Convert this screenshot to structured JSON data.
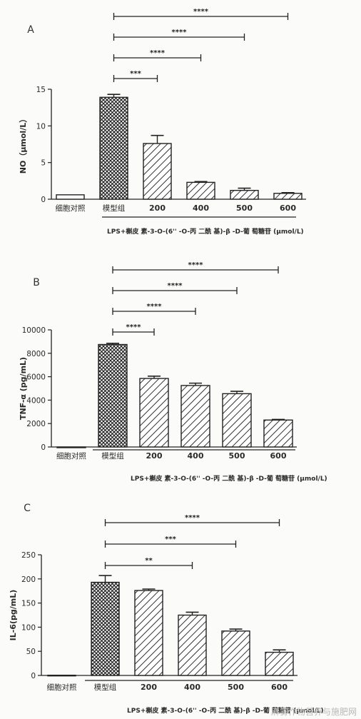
{
  "chart_data": [
    {
      "type": "bar",
      "panel_label": "A",
      "ylabel": "NO（μmol/L）",
      "ylim": [
        0,
        15
      ],
      "yticks": [
        0,
        5,
        10,
        15
      ],
      "categories": [
        "细胞对照",
        "模型组",
        "200",
        "400",
        "500",
        "600"
      ],
      "values": [
        0.6,
        13.9,
        7.6,
        2.3,
        1.2,
        0.8
      ],
      "errors": [
        0,
        0.4,
        1.1,
        0.1,
        0.3,
        0.1
      ],
      "fills": [
        "none",
        "crosshatch",
        "hatch",
        "hatch",
        "hatch",
        "hatch"
      ],
      "bracket_caption": "LPS+槲皮 素-3-O-(6'' -O-丙 二酰 基)-β -D-葡 萄糖苷 (μmol/L)",
      "significance": [
        {
          "from": "模型组",
          "to": "200",
          "label": "***"
        },
        {
          "from": "模型组",
          "to": "400",
          "label": "****"
        },
        {
          "from": "模型组",
          "to": "500",
          "label": "****"
        },
        {
          "from": "模型组",
          "to": "600",
          "label": "****"
        }
      ]
    },
    {
      "type": "bar",
      "panel_label": "B",
      "ylabel": "TNF-α (pg/mL)",
      "ylim": [
        0,
        10000
      ],
      "yticks": [
        0,
        2000,
        4000,
        6000,
        8000,
        10000
      ],
      "categories": [
        "细胞对照",
        "模型组",
        "200",
        "400",
        "500",
        "600"
      ],
      "values": [
        0,
        8750,
        5850,
        5250,
        4550,
        2300
      ],
      "errors": [
        0,
        100,
        200,
        200,
        200,
        50
      ],
      "fills": [
        "none",
        "crosshatch",
        "hatch",
        "hatch",
        "hatch",
        "hatch"
      ],
      "bracket_caption": "LPS+槲皮 素-3-O-(6'' -O-丙 二酰 基)-β -D-葡 萄糖苷 (μmol/L)",
      "significance": [
        {
          "from": "模型组",
          "to": "200",
          "label": "****"
        },
        {
          "from": "模型组",
          "to": "400",
          "label": "****"
        },
        {
          "from": "模型组",
          "to": "500",
          "label": "****"
        },
        {
          "from": "模型组",
          "to": "600",
          "label": "****"
        }
      ]
    },
    {
      "type": "bar",
      "panel_label": "C",
      "ylabel": "IL-6(pg/mL)",
      "ylim": [
        0,
        250
      ],
      "yticks": [
        0,
        50,
        100,
        150,
        200,
        250
      ],
      "categories": [
        "细胞对照",
        "模型组",
        "200",
        "400",
        "500",
        "600"
      ],
      "values": [
        0.5,
        193,
        176,
        125,
        92,
        48
      ],
      "errors": [
        0,
        14,
        3,
        6,
        4,
        5
      ],
      "fills": [
        "none",
        "crosshatch",
        "hatch",
        "hatch",
        "hatch",
        "hatch"
      ],
      "bracket_caption": "LPS+槲皮 素-3-O-(6'' -O-丙 二酰 基)-β -D-葡 萄糖苷 (μmol/L)",
      "significance": [
        {
          "from": "模型组",
          "to": "400",
          "label": "**"
        },
        {
          "from": "模型组",
          "to": "500",
          "label": "***"
        },
        {
          "from": "模型组",
          "to": "600",
          "label": "****"
        }
      ]
    }
  ],
  "watermark": "麻雾作物营养与施肥网"
}
